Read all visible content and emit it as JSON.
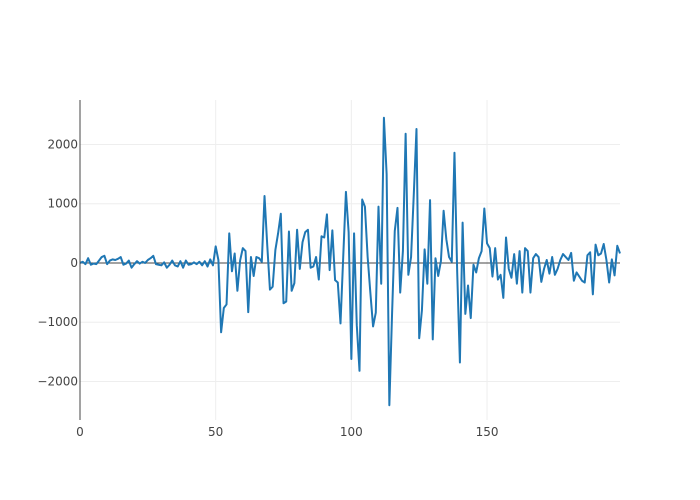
{
  "chart_data": {
    "type": "line",
    "xlim": [
      0,
      199
    ],
    "ylim": [
      -2650,
      2750
    ],
    "x_ticks": [
      0,
      50,
      100,
      150
    ],
    "x_tick_labels": [
      "0",
      "50",
      "100",
      "150"
    ],
    "y_ticks": [
      -2000,
      -1000,
      0,
      1000,
      2000
    ],
    "y_tick_labels": [
      "−2000",
      "−1000",
      "0",
      "1000",
      "2000"
    ],
    "grid": true,
    "series": [
      {
        "color": "#1f77b4",
        "x_start": 0,
        "x_step": 1,
        "values": [
          0,
          20,
          -20,
          80,
          -30,
          -10,
          -20,
          40,
          100,
          120,
          -20,
          40,
          60,
          50,
          70,
          100,
          -30,
          -10,
          40,
          -80,
          -20,
          30,
          -10,
          20,
          0,
          50,
          80,
          120,
          -20,
          -30,
          -40,
          10,
          -80,
          -30,
          40,
          -40,
          -60,
          30,
          -80,
          40,
          -30,
          -20,
          10,
          -20,
          20,
          -40,
          30,
          -60,
          60,
          -40,
          280,
          50,
          -1170,
          -760,
          -700,
          500,
          -140,
          160,
          -470,
          40,
          250,
          200,
          -830,
          100,
          -220,
          100,
          80,
          20,
          1130,
          300,
          -450,
          -400,
          220,
          500,
          830,
          -680,
          -650,
          530,
          -470,
          -340,
          560,
          -100,
          350,
          520,
          560,
          -80,
          -60,
          100,
          -280,
          450,
          430,
          820,
          -120,
          550,
          -290,
          -330,
          -1020,
          100,
          1200,
          520,
          -1620,
          500,
          -1050,
          -1820,
          1070,
          950,
          100,
          -500,
          -1070,
          -840,
          950,
          -350,
          2450,
          1500,
          -2400,
          -860,
          540,
          930,
          -500,
          200,
          2180,
          -200,
          100,
          1150,
          2260,
          -1270,
          -800,
          230,
          -350,
          1060,
          -1290,
          80,
          -220,
          30,
          880,
          400,
          100,
          20,
          1860,
          -150,
          -1680,
          680,
          -860,
          -380,
          -930,
          -30,
          -160,
          80,
          200,
          920,
          330,
          250,
          -230,
          250,
          -280,
          -200,
          -590,
          430,
          -100,
          -250,
          150,
          -350,
          200,
          -500,
          250,
          200,
          -500,
          80,
          150,
          100,
          -320,
          -100,
          50,
          -180,
          100,
          -200,
          -100,
          50,
          150,
          100,
          50,
          170,
          -300,
          -160,
          -230,
          -300,
          -330,
          130,
          180,
          -530,
          310,
          130,
          160,
          320,
          50,
          -330,
          60,
          -210,
          290,
          160
        ]
      }
    ]
  }
}
